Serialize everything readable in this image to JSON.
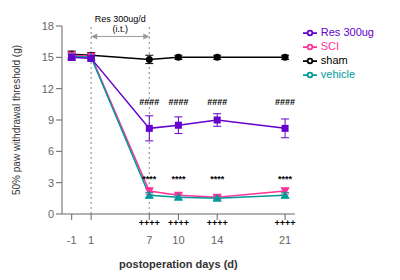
{
  "chart_data": {
    "type": "line",
    "xlabel": "postoperation days (d)",
    "ylabel": "50% paw withdrawal threshold (g)",
    "x": [
      -1,
      1,
      7,
      10,
      14,
      21
    ],
    "series": [
      {
        "name": "sham",
        "color": "#000000",
        "marker": "circle",
        "values": [
          15.3,
          15.2,
          14.8,
          15.0,
          15.0,
          15.0
        ],
        "errors": [
          0.3,
          0.25,
          0.4,
          0.2,
          0.2,
          0.2
        ]
      },
      {
        "name": "SCI",
        "color": "#FF3399",
        "marker": "triangle_down",
        "values": [
          15.2,
          15.1,
          2.2,
          1.8,
          1.6,
          2.2
        ],
        "errors": [
          0.3,
          0.25,
          0.3,
          0.2,
          0.2,
          0.3
        ]
      },
      {
        "name": "vehicle",
        "color": "#009999",
        "marker": "triangle_up",
        "values": [
          15.1,
          15.0,
          1.8,
          1.6,
          1.5,
          1.8
        ],
        "errors": [
          0.3,
          0.25,
          0.25,
          0.2,
          0.2,
          0.25
        ]
      },
      {
        "name": "Res 300ug",
        "color": "#6600CC",
        "marker": "square",
        "values": [
          15.0,
          14.9,
          8.2,
          8.5,
          9.0,
          8.2
        ],
        "errors": [
          0.3,
          0.25,
          1.2,
          0.8,
          0.6,
          0.9
        ]
      }
    ],
    "xlim": [
      -2,
      22
    ],
    "xticks": [
      -1,
      1,
      7,
      10,
      14,
      21
    ],
    "ylim": [
      0,
      18
    ],
    "yticks": [
      0,
      3,
      6,
      9,
      12,
      15,
      18
    ],
    "grid": false,
    "legend": "upper right",
    "vlines": [
      1,
      7
    ],
    "bracket": {
      "x": [
        1,
        7
      ],
      "y": 17.0,
      "label": "Res 300ug/d\n(i.t.)"
    },
    "annotations": [
      {
        "text": "****",
        "x": [
          7,
          10,
          14,
          21
        ],
        "y": 2.9
      },
      {
        "text": "####",
        "x": [
          7,
          10,
          14,
          21
        ],
        "y": 10.2
      },
      {
        "text": "++++",
        "x": [
          7,
          10,
          14,
          21
        ],
        "y": -0.3
      }
    ]
  }
}
